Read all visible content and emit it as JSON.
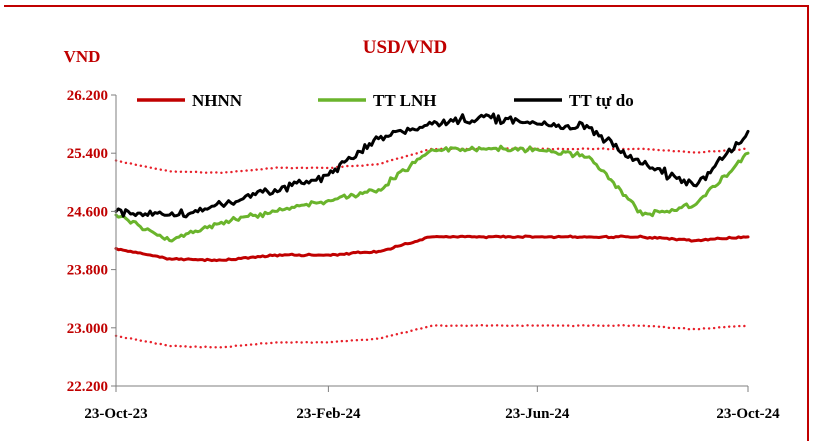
{
  "chart_data": {
    "type": "line",
    "title": "USD/VND",
    "ylabel": "VND",
    "xlabel": "",
    "ylim": [
      22200,
      26200
    ],
    "yticks": [
      22200,
      23000,
      23800,
      24600,
      25400,
      26200
    ],
    "ytick_labels": [
      "22.200",
      "23.000",
      "23.800",
      "24.600",
      "25.400",
      "26.200"
    ],
    "xticks": [
      "23-Oct-23",
      "23-Feb-24",
      "23-Jun-24",
      "23-Oct-24"
    ],
    "x_dates": [
      "2023-10-23",
      "2023-11-23",
      "2023-12-23",
      "2024-01-23",
      "2024-02-23",
      "2024-03-23",
      "2024-04-23",
      "2024-05-23",
      "2024-06-23",
      "2024-07-23",
      "2024-08-23",
      "2024-09-23",
      "2024-10-23"
    ],
    "grid": false,
    "legend": "top",
    "series": [
      {
        "name": "NHNN",
        "color": "#c00000",
        "style": "solid",
        "values": [
          24090,
          23950,
          23930,
          24000,
          24000,
          24050,
          24250,
          24250,
          24250,
          24250,
          24250,
          24200,
          24250
        ]
      },
      {
        "name": "",
        "color": "#e8202a",
        "style": "dotted",
        "values": [
          25300,
          25150,
          25130,
          25200,
          25200,
          25250,
          25460,
          25460,
          25460,
          25460,
          25460,
          25410,
          25460
        ]
      },
      {
        "name": "",
        "color": "#e8202a",
        "style": "dotted",
        "values": [
          22890,
          22750,
          22730,
          22800,
          22800,
          22850,
          23030,
          23030,
          23030,
          23030,
          23030,
          22980,
          23030
        ]
      },
      {
        "name": "TT LNH",
        "color": "#6ab42c",
        "style": "solid",
        "values": [
          24550,
          24200,
          24450,
          24600,
          24750,
          24900,
          25450,
          25460,
          25450,
          25350,
          24550,
          24700,
          25400
        ]
      },
      {
        "name": "TT tự do",
        "color": "#000000",
        "style": "solid",
        "values": [
          24600,
          24550,
          24700,
          24900,
          25100,
          25600,
          25800,
          25900,
          25800,
          25750,
          25250,
          24950,
          25700
        ]
      }
    ]
  }
}
